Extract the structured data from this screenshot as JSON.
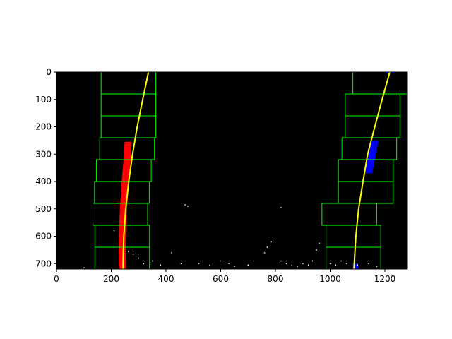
{
  "chart_data": {
    "type": "scatter",
    "xlim": [
      0,
      1280
    ],
    "ylim": [
      720,
      0
    ],
    "y_inverted": true,
    "grid": false,
    "background_color": "#000000",
    "x_ticks": [
      0,
      200,
      400,
      600,
      800,
      1000,
      1200
    ],
    "y_ticks": [
      0,
      100,
      200,
      300,
      400,
      500,
      600,
      700
    ],
    "windows": {
      "color": "#00ff00",
      "left": [
        {
          "x0": 140,
          "x1": 340,
          "y0": 640,
          "y1": 720
        },
        {
          "x0": 140,
          "x1": 340,
          "y0": 560,
          "y1": 640
        },
        {
          "x0": 133,
          "x1": 333,
          "y0": 480,
          "y1": 560
        },
        {
          "x0": 139,
          "x1": 339,
          "y0": 400,
          "y1": 480
        },
        {
          "x0": 146,
          "x1": 346,
          "y0": 320,
          "y1": 400
        },
        {
          "x0": 158,
          "x1": 358,
          "y0": 240,
          "y1": 320
        },
        {
          "x0": 163,
          "x1": 363,
          "y0": 160,
          "y1": 240
        },
        {
          "x0": 163,
          "x1": 363,
          "y0": 80,
          "y1": 160
        },
        {
          "x0": 163,
          "x1": 363,
          "y0": 0,
          "y1": 80
        }
      ],
      "right": [
        {
          "x0": 985,
          "x1": 1185,
          "y0": 640,
          "y1": 720
        },
        {
          "x0": 985,
          "x1": 1185,
          "y0": 560,
          "y1": 640
        },
        {
          "x0": 970,
          "x1": 1170,
          "y0": 480,
          "y1": 560
        },
        {
          "x0": 1030,
          "x1": 1230,
          "y0": 400,
          "y1": 480
        },
        {
          "x0": 1030,
          "x1": 1230,
          "y0": 320,
          "y1": 400
        },
        {
          "x0": 1043,
          "x1": 1243,
          "y0": 240,
          "y1": 320
        },
        {
          "x0": 1055,
          "x1": 1255,
          "y0": 160,
          "y1": 240
        },
        {
          "x0": 1055,
          "x1": 1255,
          "y0": 80,
          "y1": 160
        },
        {
          "x0": 1083,
          "x1": 1283,
          "y0": 0,
          "y1": 80
        }
      ]
    },
    "left_lane_pixels": {
      "color": "#ff0000",
      "y_range": [
        255,
        720
      ],
      "center_x": [
        [
          255,
          262
        ],
        [
          320,
          258
        ],
        [
          400,
          251
        ],
        [
          480,
          246
        ],
        [
          560,
          242
        ],
        [
          640,
          240
        ],
        [
          720,
          241
        ]
      ],
      "half_width": 13
    },
    "right_lane_pixels": {
      "color": "#0000ff",
      "segments": [
        {
          "y": [
            250,
            370
          ],
          "x": [
            [
              250,
              1162
            ],
            [
              370,
              1140
            ]
          ],
          "half_width": 14
        },
        {
          "y": [
            0,
            8
          ],
          "x": [
            [
              0,
              1220
            ],
            [
              8,
              1218
            ]
          ],
          "half_width": 18
        },
        {
          "y": [
            700,
            720
          ],
          "x": [
            [
              700,
              1092
            ],
            [
              720,
              1092
            ]
          ],
          "half_width": 10
        }
      ]
    },
    "left_fit_curve": {
      "color": "#ffff00",
      "points": [
        [
          336,
          0
        ],
        [
          315,
          100
        ],
        [
          295,
          200
        ],
        [
          278,
          300
        ],
        [
          264,
          400
        ],
        [
          253,
          500
        ],
        [
          246,
          600
        ],
        [
          243,
          700
        ],
        [
          243,
          720
        ]
      ]
    },
    "right_fit_curve": {
      "color": "#ffff00",
      "points": [
        [
          1218,
          0
        ],
        [
          1190,
          100
        ],
        [
          1163,
          200
        ],
        [
          1137,
          300
        ],
        [
          1120,
          400
        ],
        [
          1104,
          500
        ],
        [
          1094,
          600
        ],
        [
          1088,
          700
        ],
        [
          1087,
          720
        ]
      ]
    },
    "noise_pixels": {
      "color": "#ffffff",
      "points": [
        [
          470,
          485
        ],
        [
          480,
          490
        ],
        [
          228,
          640
        ],
        [
          262,
          655
        ],
        [
          280,
          665
        ],
        [
          300,
          680
        ],
        [
          318,
          700
        ],
        [
          350,
          690
        ],
        [
          380,
          705
        ],
        [
          420,
          660
        ],
        [
          455,
          700
        ],
        [
          520,
          700
        ],
        [
          560,
          705
        ],
        [
          600,
          690
        ],
        [
          630,
          700
        ],
        [
          650,
          710
        ],
        [
          700,
          705
        ],
        [
          720,
          690
        ],
        [
          760,
          660
        ],
        [
          770,
          640
        ],
        [
          785,
          620
        ],
        [
          820,
          690
        ],
        [
          840,
          700
        ],
        [
          860,
          705
        ],
        [
          880,
          710
        ],
        [
          900,
          700
        ],
        [
          920,
          705
        ],
        [
          935,
          690
        ],
        [
          950,
          650
        ],
        [
          960,
          625
        ],
        [
          1000,
          700
        ],
        [
          1020,
          705
        ],
        [
          1040,
          690
        ],
        [
          1060,
          700
        ],
        [
          1100,
          705
        ],
        [
          1140,
          700
        ],
        [
          1170,
          710
        ],
        [
          820,
          495
        ],
        [
          100,
          715
        ],
        [
          210,
          580
        ]
      ]
    }
  }
}
